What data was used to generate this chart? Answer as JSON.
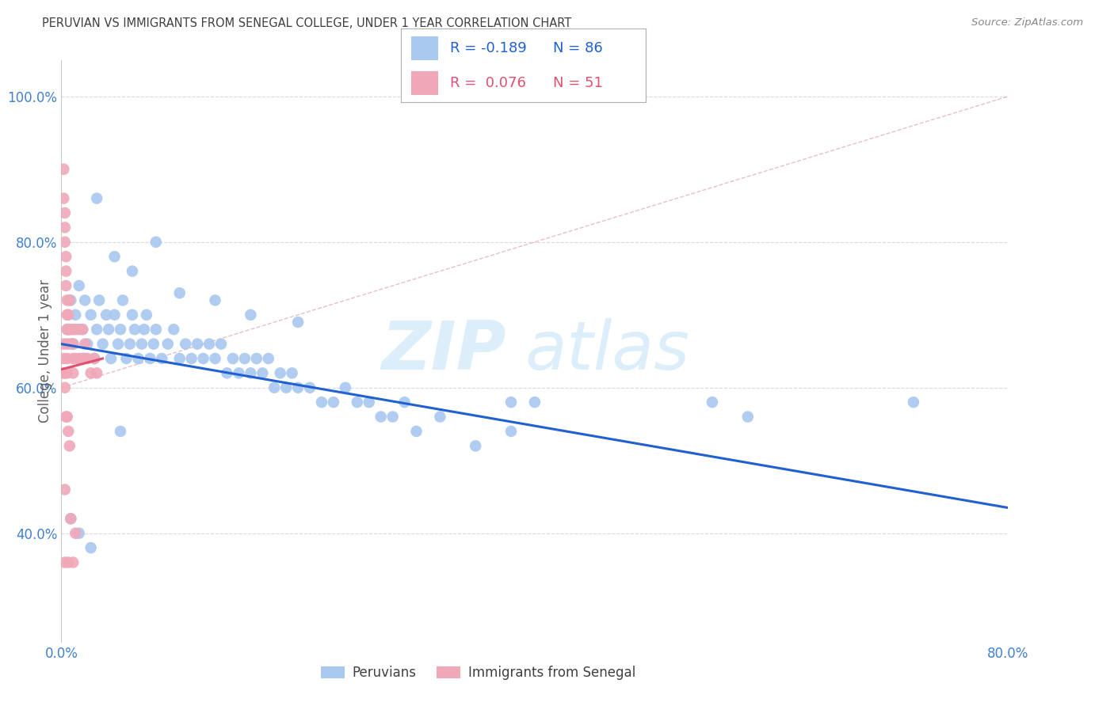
{
  "title": "PERUVIAN VS IMMIGRANTS FROM SENEGAL COLLEGE, UNDER 1 YEAR CORRELATION CHART",
  "source": "Source: ZipAtlas.com",
  "ylabel_label": "College, Under 1 year",
  "xlim": [
    0.0,
    0.8
  ],
  "ylim": [
    0.25,
    1.05
  ],
  "x_ticks": [
    0.0,
    0.1,
    0.2,
    0.3,
    0.4,
    0.5,
    0.6,
    0.7,
    0.8
  ],
  "x_tick_labels": [
    "0.0%",
    "",
    "",
    "",
    "",
    "",
    "",
    "",
    "80.0%"
  ],
  "y_ticks": [
    0.4,
    0.6,
    0.8,
    1.0
  ],
  "y_tick_labels": [
    "40.0%",
    "60.0%",
    "80.0%",
    "100.0%"
  ],
  "legend_blue_r": "-0.189",
  "legend_blue_n": "86",
  "legend_pink_r": "0.076",
  "legend_pink_n": "51",
  "legend_label_blue": "Peruvians",
  "legend_label_pink": "Immigrants from Senegal",
  "scatter_blue_color": "#a8c8f0",
  "scatter_pink_color": "#f0a8b8",
  "line_blue_color": "#2060d0",
  "line_pink_color": "#e05070",
  "line_dashed_color": "#e0b0b8",
  "watermark_zip": "ZIP",
  "watermark_atlas": "atlas",
  "watermark_color": "#dceefa",
  "title_color": "#404040",
  "axis_color": "#4080d0",
  "grid_color": "#d8d8e8",
  "blue_points_x": [
    0.005,
    0.008,
    0.01,
    0.012,
    0.015,
    0.018,
    0.02,
    0.022,
    0.025,
    0.028,
    0.03,
    0.032,
    0.035,
    0.038,
    0.04,
    0.042,
    0.045,
    0.048,
    0.05,
    0.052,
    0.055,
    0.058,
    0.06,
    0.062,
    0.065,
    0.068,
    0.07,
    0.072,
    0.075,
    0.078,
    0.08,
    0.085,
    0.09,
    0.095,
    0.1,
    0.105,
    0.11,
    0.115,
    0.12,
    0.125,
    0.13,
    0.135,
    0.14,
    0.145,
    0.15,
    0.155,
    0.16,
    0.165,
    0.17,
    0.175,
    0.18,
    0.185,
    0.19,
    0.195,
    0.2,
    0.21,
    0.22,
    0.23,
    0.24,
    0.25,
    0.26,
    0.27,
    0.28,
    0.29,
    0.3,
    0.32,
    0.35,
    0.38,
    0.03,
    0.045,
    0.06,
    0.08,
    0.1,
    0.13,
    0.16,
    0.2,
    0.38,
    0.4,
    0.55,
    0.58,
    0.72,
    0.008,
    0.015,
    0.025,
    0.05
  ],
  "blue_points_y": [
    0.68,
    0.72,
    0.66,
    0.7,
    0.74,
    0.68,
    0.72,
    0.66,
    0.7,
    0.64,
    0.68,
    0.72,
    0.66,
    0.7,
    0.68,
    0.64,
    0.7,
    0.66,
    0.68,
    0.72,
    0.64,
    0.66,
    0.7,
    0.68,
    0.64,
    0.66,
    0.68,
    0.7,
    0.64,
    0.66,
    0.68,
    0.64,
    0.66,
    0.68,
    0.64,
    0.66,
    0.64,
    0.66,
    0.64,
    0.66,
    0.64,
    0.66,
    0.62,
    0.64,
    0.62,
    0.64,
    0.62,
    0.64,
    0.62,
    0.64,
    0.6,
    0.62,
    0.6,
    0.62,
    0.6,
    0.6,
    0.58,
    0.58,
    0.6,
    0.58,
    0.58,
    0.56,
    0.56,
    0.58,
    0.54,
    0.56,
    0.52,
    0.54,
    0.86,
    0.78,
    0.76,
    0.8,
    0.73,
    0.72,
    0.7,
    0.69,
    0.58,
    0.58,
    0.58,
    0.56,
    0.58,
    0.42,
    0.4,
    0.38,
    0.54
  ],
  "pink_points_x": [
    0.002,
    0.002,
    0.003,
    0.003,
    0.003,
    0.004,
    0.004,
    0.004,
    0.005,
    0.005,
    0.005,
    0.005,
    0.005,
    0.005,
    0.006,
    0.006,
    0.007,
    0.007,
    0.008,
    0.008,
    0.01,
    0.01,
    0.01,
    0.01,
    0.012,
    0.012,
    0.015,
    0.015,
    0.018,
    0.018,
    0.02,
    0.02,
    0.022,
    0.025,
    0.028,
    0.03,
    0.003,
    0.003,
    0.004,
    0.005,
    0.006,
    0.007,
    0.003,
    0.008,
    0.012,
    0.003,
    0.006,
    0.01,
    0.002,
    0.002,
    0.002
  ],
  "pink_points_y": [
    0.9,
    0.86,
    0.84,
    0.82,
    0.8,
    0.78,
    0.76,
    0.74,
    0.72,
    0.7,
    0.68,
    0.66,
    0.64,
    0.62,
    0.7,
    0.68,
    0.72,
    0.68,
    0.68,
    0.66,
    0.66,
    0.64,
    0.68,
    0.62,
    0.68,
    0.64,
    0.68,
    0.64,
    0.68,
    0.64,
    0.66,
    0.64,
    0.64,
    0.62,
    0.64,
    0.62,
    0.62,
    0.6,
    0.56,
    0.56,
    0.54,
    0.52,
    0.46,
    0.42,
    0.4,
    0.36,
    0.36,
    0.36,
    0.66,
    0.64,
    0.62
  ],
  "blue_line_x0": 0.0,
  "blue_line_x1": 0.8,
  "blue_line_y0": 0.66,
  "blue_line_y1": 0.435,
  "pink_line_x0": 0.0,
  "pink_line_x1": 0.035,
  "pink_line_y0": 0.625,
  "pink_line_y1": 0.64,
  "dashed_line_x0": 0.0,
  "dashed_line_x1": 0.8,
  "dashed_line_y0": 0.6,
  "dashed_line_y1": 1.0
}
